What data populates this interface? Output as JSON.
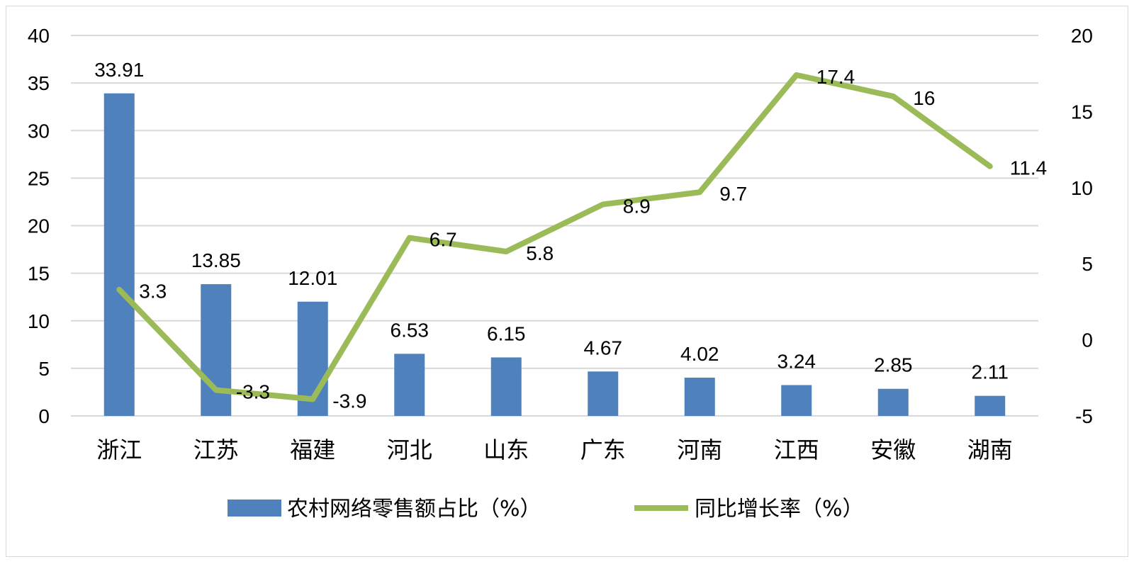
{
  "chart_data": {
    "type": "bar",
    "title": "",
    "categories": [
      "浙江",
      "江苏",
      "福建",
      "河北",
      "山东",
      "广东",
      "河南",
      "江西",
      "安徽",
      "湖南"
    ],
    "series": [
      {
        "name": "农村网络零售额占比（%）",
        "type": "bar",
        "axis": "left",
        "color": "#4f81bd",
        "values": [
          33.91,
          13.85,
          12.01,
          6.53,
          6.15,
          4.67,
          4.02,
          3.24,
          2.85,
          2.11
        ],
        "labels": [
          "33.91",
          "13.85",
          "12.01",
          "6.53",
          "6.15",
          "4.67",
          "4.02",
          "3.24",
          "2.85",
          "2.11"
        ]
      },
      {
        "name": "同比增长率（%）",
        "type": "line",
        "axis": "right",
        "color": "#9bbb59",
        "values": [
          3.3,
          -3.3,
          -3.9,
          6.7,
          5.8,
          8.9,
          9.7,
          17.4,
          16,
          11.4
        ],
        "labels": [
          "3.3",
          "-3.3",
          "-3.9",
          "6.7",
          "5.8",
          "8.9",
          "9.7",
          "17.4",
          "16",
          "11.4"
        ]
      }
    ],
    "y_left": {
      "min": 0,
      "max": 40,
      "step": 5,
      "ticks": [
        "0",
        "5",
        "10",
        "15",
        "20",
        "25",
        "30",
        "35",
        "40"
      ]
    },
    "y_right": {
      "min": -5,
      "max": 20,
      "step": 5,
      "ticks": [
        "-5",
        "0",
        "5",
        "10",
        "15",
        "20"
      ]
    },
    "grid": true,
    "legend_position": "bottom"
  }
}
